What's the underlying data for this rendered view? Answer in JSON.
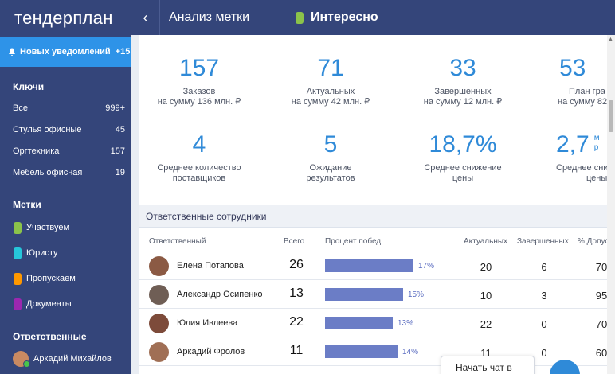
{
  "app": {
    "logo": "тендерплан"
  },
  "sidebar": {
    "notifications": {
      "label": "Новых уведомлений",
      "count": "+15"
    },
    "keys_title": "Ключи",
    "keys": [
      {
        "label": "Все",
        "count": "999+"
      },
      {
        "label": "Стулья офисные",
        "count": "45"
      },
      {
        "label": "Оргтехника",
        "count": "157"
      },
      {
        "label": "Мебель офисная",
        "count": "19"
      }
    ],
    "tags_title": "Метки",
    "tags": [
      {
        "label": "Участвуем",
        "color": "#8bc34a"
      },
      {
        "label": "Юристу",
        "color": "#26c6da"
      },
      {
        "label": "Пропускаем",
        "color": "#ff9800"
      },
      {
        "label": "Документы",
        "color": "#9c27b0"
      }
    ],
    "responsible_title": "Ответственные",
    "responsible_user": "Аркадий Михайлов"
  },
  "header": {
    "back_icon": "chevron-left-icon",
    "title": "Анализ метки",
    "label": "Интересно",
    "label_color": "#8bc34a"
  },
  "stats": [
    {
      "value": "157",
      "line1": "Заказов",
      "line2": "на сумму 136 млн. ₽"
    },
    {
      "value": "71",
      "line1": "Актуальных",
      "line2": "на сумму 42 млн. ₽"
    },
    {
      "value": "33",
      "line1": "Завершенных",
      "line2": "на сумму 12 млн. ₽"
    },
    {
      "value": "53",
      "line1": "План гра",
      "line2": "на сумму 82"
    },
    {
      "value": "4",
      "line1": "Среднее количество",
      "line2": "поставщиков"
    },
    {
      "value": "5",
      "line1": "Ожидание",
      "line2": "результатов"
    },
    {
      "value": "18,7%",
      "line1": "Среднее снижение",
      "line2": "цены"
    },
    {
      "value": "2,7",
      "line1": "Среднее сни",
      "line2": "цены"
    }
  ],
  "stat_unit_fragment": {
    "top": "м",
    "bottom": "р"
  },
  "staff": {
    "title": "Ответственные сотрудники",
    "columns": {
      "name": "Ответственный",
      "total": "Всего",
      "win_pct": "Процент побед",
      "active": "Актуальных",
      "completed": "Завершенных",
      "admitted": "% Допус"
    },
    "rows": [
      {
        "name": "Елена Потапова",
        "total": "26",
        "win_pct": "17%",
        "win_fraction": 0.17,
        "active": "20",
        "completed": "6",
        "admitted": "70"
      },
      {
        "name": "Александр Осипенко",
        "total": "13",
        "win_pct": "15%",
        "win_fraction": 0.15,
        "active": "10",
        "completed": "3",
        "admitted": "95"
      },
      {
        "name": "Юлия Ивлеева",
        "total": "22",
        "win_pct": "13%",
        "win_fraction": 0.13,
        "active": "22",
        "completed": "0",
        "admitted": "70"
      },
      {
        "name": "Аркадий Фролов",
        "total": "11",
        "win_pct": "14%",
        "win_fraction": 0.14,
        "active": "11",
        "completed": "0",
        "admitted": "60"
      }
    ]
  },
  "chat": {
    "label": "Начать чат в"
  }
}
